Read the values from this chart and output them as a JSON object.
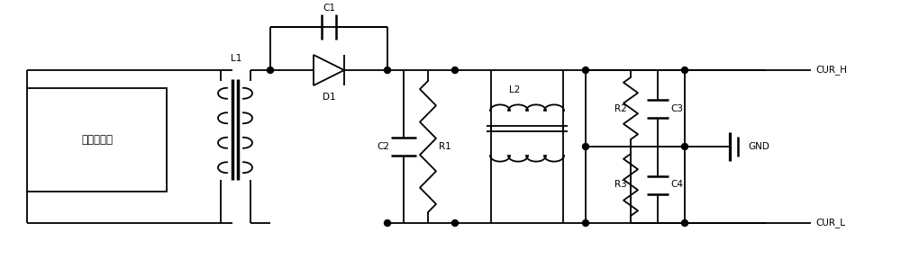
{
  "bg_color": "#ffffff",
  "line_color": "#000000",
  "lw": 1.3,
  "lw_thick": 2.5,
  "fig_width": 10.0,
  "fig_height": 3.08,
  "dpi": 100,
  "labels": {
    "injector_box": "喷油器回路",
    "L1": "L1",
    "C1": "C1",
    "D1": "D1",
    "C2": "C2",
    "R1": "R1",
    "L2": "L2",
    "R2": "R2",
    "C3": "C3",
    "R3": "R3",
    "C4": "C4",
    "GND": "GND",
    "CUR_H": "CUR_H",
    "CUR_L": "CUR_L"
  }
}
